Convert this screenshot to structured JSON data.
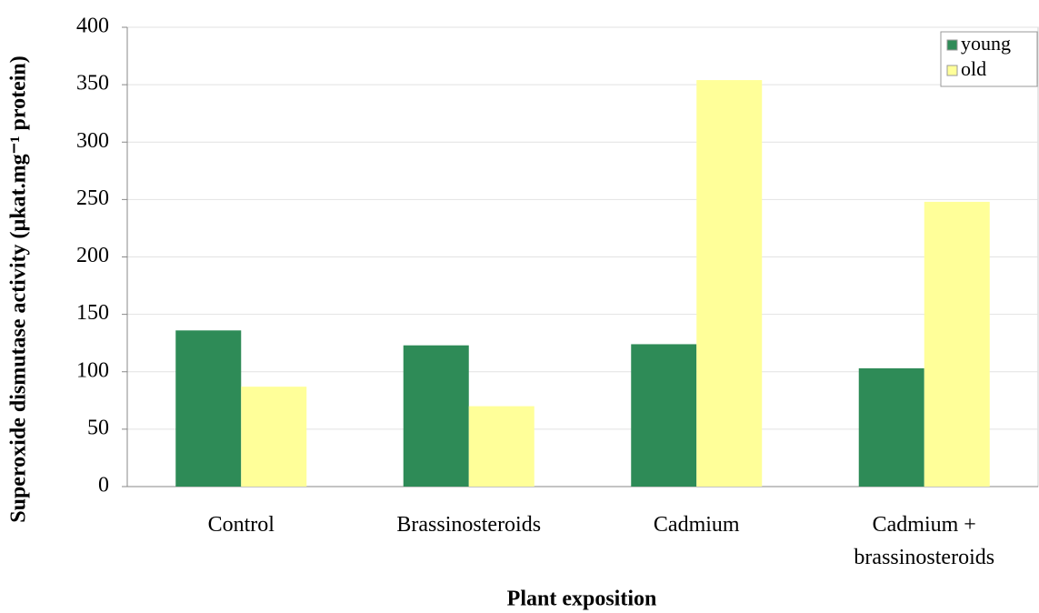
{
  "chart_data": {
    "type": "bar",
    "x_label": "Plant exposition",
    "y_label": "Superoxide dismutase activity (µkat.mg⁻¹ protein)",
    "categories": [
      "Control",
      "Brassinosteroids",
      "Cadmium",
      "Cadmium + brassinosteroids"
    ],
    "series": [
      {
        "name": "young",
        "color": "#2e8b57",
        "values": [
          136,
          123,
          124,
          103
        ]
      },
      {
        "name": "old",
        "color": "#ffff99",
        "values": [
          87,
          70,
          354,
          248
        ]
      }
    ],
    "ylim": [
      0,
      400
    ],
    "yticks": [
      0,
      50,
      100,
      150,
      200,
      250,
      300,
      350,
      400
    ],
    "grid": true,
    "legend": "upper right"
  }
}
